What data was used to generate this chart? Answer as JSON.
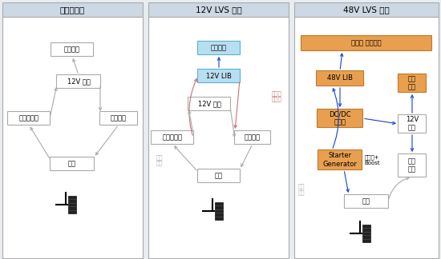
{
  "title1": "내연기관차",
  "title2": "12V LVS 사용",
  "title3": "48V LVS 사용",
  "bg_color": "#e8edf2",
  "header_bg": "#ccd8e4",
  "panel_bg": "#ffffff",
  "box_default_fill": "#ffffff",
  "box_default_edge": "#aaaaaa",
  "box_blue_fill": "#b8dff0",
  "box_blue_edge": "#5ab0d8",
  "box_orange_fill": "#e8a050",
  "box_orange_edge": "#c07828",
  "arrow_gray": "#aaaaaa",
  "arrow_red": "#cc7070",
  "arrow_blue": "#1144cc",
  "font_size_title": 7.5,
  "font_size_box": 6.0,
  "font_size_note": 5.0
}
